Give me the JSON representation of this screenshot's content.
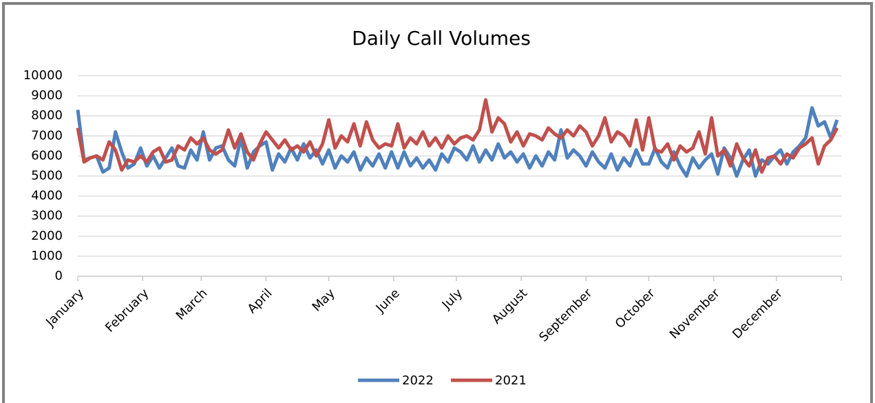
{
  "chart_data": {
    "type": "line",
    "title": "Daily Call Volumes",
    "x": [
      1,
      4,
      7,
      10,
      13,
      16,
      19,
      22,
      25,
      28,
      31,
      34,
      37,
      40,
      43,
      46,
      49,
      52,
      55,
      58,
      61,
      64,
      67,
      70,
      73,
      76,
      79,
      82,
      85,
      88,
      91,
      94,
      97,
      100,
      103,
      106,
      109,
      112,
      115,
      118,
      121,
      124,
      127,
      130,
      133,
      136,
      139,
      142,
      145,
      148,
      151,
      154,
      157,
      160,
      163,
      166,
      169,
      172,
      175,
      178,
      181,
      184,
      187,
      190,
      193,
      196,
      199,
      202,
      205,
      208,
      211,
      214,
      217,
      220,
      223,
      226,
      229,
      232,
      235,
      238,
      241,
      244,
      247,
      250,
      253,
      256,
      259,
      262,
      265,
      268,
      271,
      274,
      277,
      280,
      283,
      286,
      289,
      292,
      295,
      298,
      301,
      304,
      307,
      310,
      313,
      316,
      319,
      322,
      325,
      328,
      331,
      334,
      337,
      340,
      343,
      346,
      349,
      352,
      355,
      358,
      361,
      364
    ],
    "xlim": [
      1,
      366
    ],
    "xticks": [
      {
        "value": 1,
        "label": "January"
      },
      {
        "value": 32,
        "label": "February"
      },
      {
        "value": 60,
        "label": "March"
      },
      {
        "value": 91,
        "label": "April"
      },
      {
        "value": 121,
        "label": "May"
      },
      {
        "value": 152,
        "label": "June"
      },
      {
        "value": 182,
        "label": "July"
      },
      {
        "value": 213,
        "label": "August"
      },
      {
        "value": 244,
        "label": "September"
      },
      {
        "value": 274,
        "label": "October"
      },
      {
        "value": 305,
        "label": "November"
      },
      {
        "value": 335,
        "label": "December"
      }
    ],
    "ylim": [
      0,
      10000
    ],
    "yticks": [
      0,
      1000,
      2000,
      3000,
      4000,
      5000,
      6000,
      7000,
      8000,
      9000,
      10000
    ],
    "grid": true,
    "legend": "bottom",
    "series": [
      {
        "name": "2022",
        "color": "#4f81bd",
        "values": [
          8300,
          5800,
          5900,
          6000,
          5200,
          5400,
          7200,
          6200,
          5400,
          5600,
          6400,
          5500,
          6000,
          5400,
          5900,
          6400,
          5500,
          5400,
          6300,
          5800,
          7200,
          5800,
          6400,
          6500,
          5800,
          5500,
          6900,
          5400,
          6200,
          6500,
          6700,
          5300,
          6100,
          5700,
          6400,
          5800,
          6600,
          5900,
          6300,
          5600,
          6300,
          5400,
          6000,
          5700,
          6200,
          5300,
          5900,
          5500,
          6100,
          5400,
          6200,
          5400,
          6200,
          5500,
          5900,
          5400,
          5800,
          5300,
          6100,
          5700,
          6400,
          6200,
          5800,
          6500,
          5700,
          6300,
          5800,
          6600,
          5900,
          6200,
          5700,
          6100,
          5400,
          6000,
          5500,
          6200,
          5800,
          7300,
          5900,
          6300,
          6000,
          5500,
          6200,
          5700,
          5400,
          6100,
          5300,
          5900,
          5500,
          6300,
          5600,
          5600,
          6400,
          5700,
          5400,
          6200,
          5500,
          5000,
          5900,
          5400,
          5800,
          6100,
          5100,
          6400,
          5900,
          5000,
          5800,
          6300,
          5000,
          5800,
          5600,
          6000,
          6300,
          5600,
          6200,
          6500,
          6900,
          8400,
          7500,
          7700,
          6900,
          7800
        ]
      },
      {
        "name": "2021",
        "color": "#c0504d",
        "values": [
          7400,
          5700,
          5900,
          6000,
          5800,
          6700,
          6300,
          5300,
          5800,
          5700,
          6000,
          5700,
          6200,
          6400,
          5700,
          5800,
          6500,
          6300,
          6900,
          6600,
          6900,
          6300,
          6100,
          6300,
          7300,
          6400,
          7100,
          6200,
          5800,
          6600,
          7200,
          6800,
          6400,
          6800,
          6300,
          6500,
          6200,
          6700,
          6000,
          6600,
          7800,
          6400,
          7000,
          6700,
          7600,
          6500,
          7700,
          6800,
          6400,
          6600,
          6500,
          7600,
          6400,
          6900,
          6600,
          7200,
          6500,
          6900,
          6400,
          7000,
          6600,
          6900,
          7000,
          6800,
          7300,
          8800,
          7200,
          7900,
          7600,
          6700,
          7200,
          6500,
          7100,
          7000,
          6800,
          7400,
          7100,
          6900,
          7300,
          7000,
          7500,
          7200,
          6500,
          7000,
          7900,
          6700,
          7200,
          7000,
          6500,
          7800,
          6300,
          7900,
          6300,
          6200,
          6600,
          5800,
          6500,
          6200,
          6400,
          7200,
          6100,
          7900,
          6000,
          6300,
          5500,
          6600,
          5900,
          5500,
          6300,
          5200,
          5900,
          6000,
          5600,
          6100,
          5900,
          6400,
          6600,
          6900,
          5600,
          6500,
          6800,
          7400
        ]
      }
    ]
  }
}
